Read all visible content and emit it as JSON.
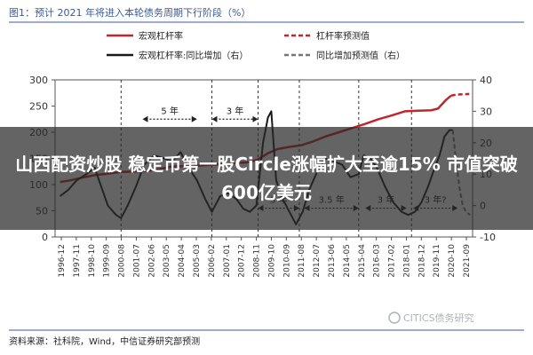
{
  "figure": {
    "title": "图1：预计 2021 年将进入本轮债务周期下行阶段（%）",
    "source": "资料来源：社科院，Wind，中信证券研究部预测",
    "watermark": "CITICS债务研究"
  },
  "overlay": {
    "headline": "山西配资炒股 稳定币第一股Circle涨幅扩大至逾15% 市值突破600亿美元"
  },
  "chart_data": {
    "type": "line",
    "title": "",
    "legend": [
      {
        "name": "宏观杠杆率",
        "style": "solid",
        "color": "#c0262c",
        "axis": "left"
      },
      {
        "name": "杠杆率预测值",
        "style": "dashed",
        "color": "#c0262c",
        "axis": "left"
      },
      {
        "name": "宏观杠杆率:同比增加（右）",
        "style": "solid",
        "color": "#1a1a1a",
        "axis": "right"
      },
      {
        "name": "同比增加预测值（右）",
        "style": "dashed",
        "color": "#777777",
        "axis": "right"
      }
    ],
    "legend_position": "top",
    "y_left": {
      "range": [
        0,
        300
      ],
      "ticks": [
        "0",
        "50",
        "100",
        "150",
        "200",
        "250",
        "300"
      ]
    },
    "y_right": {
      "range": [
        -10,
        40
      ],
      "ticks": [
        "-10",
        "0",
        "10",
        "20",
        "30",
        "40"
      ]
    },
    "x_ticks": [
      "1996-12",
      "1997-11",
      "1998-10",
      "1999-09",
      "2000-08",
      "2001-07",
      "2002-06",
      "2003-05",
      "2004-04",
      "2005-03",
      "2006-02",
      "2007-01",
      "2007-12",
      "2008-11",
      "2009-10",
      "2010-09",
      "2011-08",
      "2012-07",
      "2013-06",
      "2014-05",
      "2015-04",
      "2016-03",
      "2017-02",
      "2018-01",
      "2018-12",
      "2019-11",
      "2020-10",
      "2021-09"
    ],
    "series": [
      {
        "name": "宏观杠杆率",
        "axis": "left",
        "x": [
          1996.9,
          1997.5,
          1998.2,
          1999.0,
          1999.8,
          2000.6,
          2001.4,
          2002.2,
          2003.0,
          2003.6,
          2004.4,
          2005.2,
          2006.0,
          2006.8,
          2007.6,
          2008.4,
          2008.9,
          2009.5,
          2010.1,
          2010.8,
          2011.5,
          2012.2,
          2013.0,
          2013.8,
          2014.6,
          2015.4,
          2016.2,
          2017.0,
          2017.8,
          2018.6,
          2019.4,
          2019.8,
          2020.3,
          2020.6
        ],
        "values": [
          105,
          108,
          113,
          118,
          121,
          124,
          125,
          126,
          130,
          134,
          135,
          136,
          138,
          139,
          141,
          143,
          148,
          160,
          168,
          172,
          175,
          182,
          192,
          200,
          208,
          216,
          225,
          232,
          240,
          241,
          242,
          245,
          262,
          270
        ]
      },
      {
        "name": "杠杆率预测值",
        "axis": "left",
        "x": [
          2020.6,
          2021.0,
          2021.7
        ],
        "values": [
          270,
          272,
          273
        ]
      },
      {
        "name": "宏观杠杆率:同比增加（右）",
        "axis": "right",
        "x": [
          1996.9,
          1997.4,
          1997.9,
          1998.5,
          1999.0,
          1999.4,
          1999.8,
          2000.3,
          2000.6,
          2001.0,
          2001.5,
          2002.0,
          2002.6,
          2003.2,
          2003.7,
          2004.2,
          2004.7,
          2005.2,
          2005.7,
          2006.1,
          2006.6,
          2007.1,
          2007.6,
          2008.0,
          2008.4,
          2008.8,
          2009.2,
          2009.5,
          2009.7,
          2010.0,
          2010.4,
          2010.8,
          2011.2,
          2011.6,
          2012.0,
          2012.5,
          2013.0,
          2013.5,
          2014.0,
          2014.5,
          2015.0,
          2015.3,
          2015.7,
          2016.1,
          2016.6,
          2017.1,
          2017.6,
          2018.0,
          2018.4,
          2018.8,
          2019.2,
          2019.6,
          2019.9,
          2020.2,
          2020.5,
          2020.7
        ],
        "values": [
          3,
          5,
          8,
          10,
          12,
          6,
          0,
          -3,
          -4,
          0,
          6,
          13,
          16,
          15,
          14,
          17,
          12,
          8,
          2,
          -2,
          3,
          4,
          2,
          -1,
          -2,
          0,
          20,
          28,
          30,
          8,
          2,
          -2,
          -6,
          -2,
          5,
          11,
          15,
          14,
          13,
          9,
          10,
          16,
          15,
          12,
          6,
          1,
          -2,
          -3,
          -2,
          1,
          6,
          12,
          16,
          22,
          24,
          24
        ]
      },
      {
        "name": "同比增加预测值（右）",
        "axis": "right",
        "x": [
          2020.7,
          2020.9,
          2021.1,
          2021.3,
          2021.5,
          2021.75
        ],
        "values": [
          24,
          14,
          6,
          0,
          -2,
          -3
        ]
      }
    ],
    "annotations": [
      {
        "text": "5 年",
        "from": 2001.9,
        "to": 2005.2,
        "y_left": 225
      },
      {
        "text": "3 年",
        "from": 2006.1,
        "to": 2008.9,
        "y_left": 225
      },
      {
        "text": "3 年",
        "from": 2008.9,
        "to": 2011.4,
        "y_left": 55
      },
      {
        "text": "3.5 年",
        "from": 2011.7,
        "to": 2015.0,
        "y_left": 55
      },
      {
        "text": "3 年",
        "from": 2015.4,
        "to": 2017.9,
        "y_left": 55
      },
      {
        "text": "3 年?",
        "from": 2018.3,
        "to": 2021.0,
        "y_left": 55
      }
    ],
    "cycle_markers": [
      2000.6,
      2006.1,
      2008.9,
      2011.4,
      2015.0,
      2018.2
    ],
    "grid": false
  },
  "colors": {
    "leverage": "#c0262c",
    "yoy": "#1a1a1a",
    "yoy_forecast": "#777777",
    "title": "#3a5a94",
    "overlay_text": "#ffffff"
  }
}
